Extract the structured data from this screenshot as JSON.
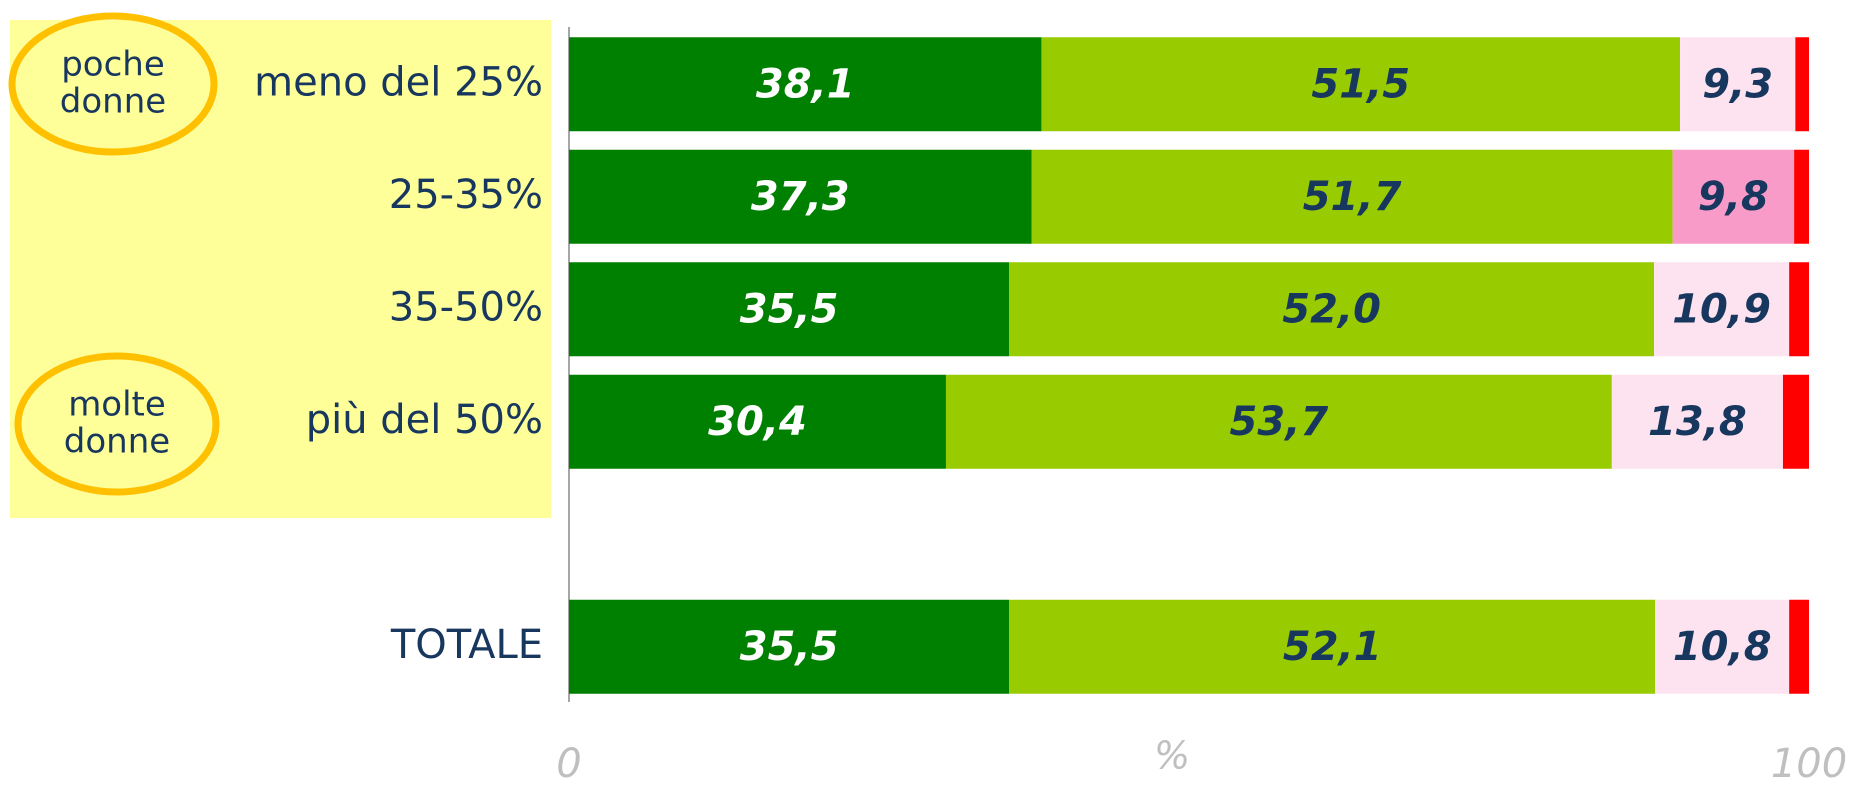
{
  "chart_data": {
    "type": "stacked-bar-horizontal",
    "categories": [
      "meno del 25%",
      "25-35%",
      "35-50%",
      "più del 50%",
      null,
      "TOTALE"
    ],
    "series": [
      {
        "color": "#008000",
        "label_color": "#ffffff",
        "values": [
          38.1,
          37.3,
          35.5,
          30.4,
          null,
          35.5
        ],
        "value_labels": [
          "38,1",
          "37,3",
          "35,5",
          "30,4",
          null,
          "35,5"
        ]
      },
      {
        "color": "#99cc00",
        "label_color": "#17375e",
        "values": [
          51.5,
          51.7,
          52.0,
          53.7,
          null,
          52.1
        ],
        "value_labels": [
          "51,5",
          "51,7",
          "52,0",
          "53,7",
          null,
          "52,1"
        ]
      },
      {
        "color": "#fde3ef",
        "colors": [
          null,
          "#f99bc8",
          null,
          null,
          null,
          null
        ],
        "label_color": "#17375e",
        "values": [
          9.3,
          9.8,
          10.9,
          13.8,
          null,
          10.8
        ],
        "value_labels": [
          "9,3",
          "9,8",
          "10,9",
          "13,8",
          null,
          "10,8"
        ]
      },
      {
        "color": "#ff0000",
        "values": [
          1.1,
          1.2,
          1.6,
          2.1,
          null,
          1.6
        ]
      }
    ],
    "annotations": [
      "poche donne",
      "molte donne"
    ],
    "xlabel": "%",
    "xlim": [
      0,
      100
    ],
    "xticks": [
      0,
      100
    ]
  }
}
